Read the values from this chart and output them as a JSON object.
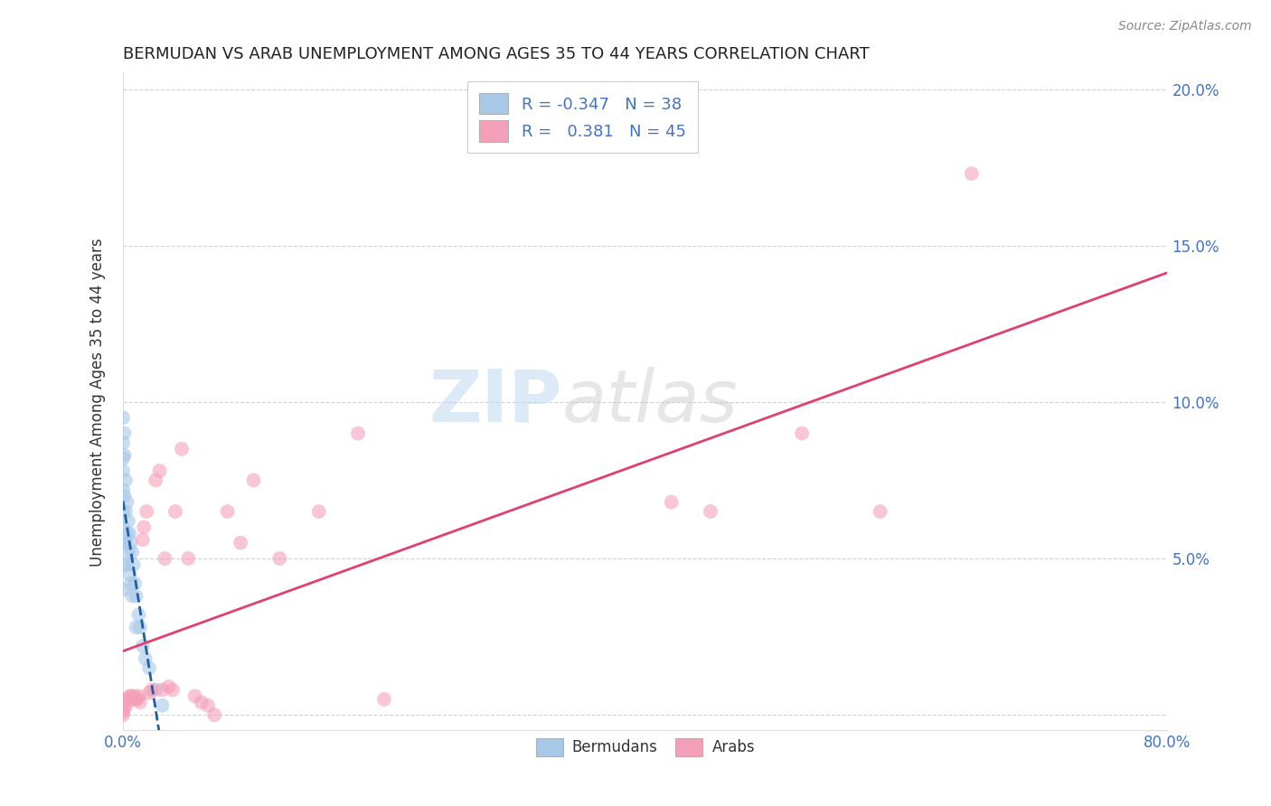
{
  "title": "BERMUDAN VS ARAB UNEMPLOYMENT AMONG AGES 35 TO 44 YEARS CORRELATION CHART",
  "source": "Source: ZipAtlas.com",
  "ylabel": "Unemployment Among Ages 35 to 44 years",
  "xlim": [
    0,
    0.8
  ],
  "ylim": [
    -0.005,
    0.205
  ],
  "watermark_zip": "ZIP",
  "watermark_atlas": "atlas",
  "legend_r_bermuda": "-0.347",
  "legend_n_bermuda": "38",
  "legend_r_arab": "0.381",
  "legend_n_arab": "45",
  "bermuda_color": "#a8c8e8",
  "arab_color": "#f4a0b8",
  "bermuda_line_color": "#2060a0",
  "arab_line_color": "#e04070",
  "background_color": "#ffffff",
  "grid_color": "#cccccc",
  "tick_color": "#4472c4",
  "berm_x": [
    0.0,
    0.0,
    0.0,
    0.0,
    0.0,
    0.0,
    0.0,
    0.0,
    0.0,
    0.0,
    0.001,
    0.001,
    0.001,
    0.002,
    0.002,
    0.002,
    0.003,
    0.003,
    0.003,
    0.004,
    0.004,
    0.005,
    0.005,
    0.006,
    0.006,
    0.007,
    0.007,
    0.008,
    0.009,
    0.01,
    0.01,
    0.012,
    0.013,
    0.015,
    0.017,
    0.02,
    0.025,
    0.03
  ],
  "berm_y": [
    0.095,
    0.087,
    0.082,
    0.078,
    0.072,
    0.065,
    0.06,
    0.055,
    0.048,
    0.04,
    0.09,
    0.083,
    0.07,
    0.075,
    0.065,
    0.055,
    0.068,
    0.058,
    0.048,
    0.062,
    0.052,
    0.058,
    0.045,
    0.055,
    0.042,
    0.052,
    0.038,
    0.048,
    0.042,
    0.038,
    0.028,
    0.032,
    0.028,
    0.022,
    0.018,
    0.015,
    0.008,
    0.003
  ],
  "arab_x": [
    0.0,
    0.0,
    0.001,
    0.002,
    0.003,
    0.004,
    0.005,
    0.006,
    0.007,
    0.008,
    0.009,
    0.01,
    0.011,
    0.012,
    0.013,
    0.015,
    0.016,
    0.018,
    0.02,
    0.022,
    0.025,
    0.028,
    0.03,
    0.032,
    0.035,
    0.038,
    0.04,
    0.045,
    0.05,
    0.055,
    0.06,
    0.065,
    0.07,
    0.08,
    0.09,
    0.1,
    0.12,
    0.15,
    0.18,
    0.2,
    0.42,
    0.45,
    0.52,
    0.58,
    0.65
  ],
  "arab_y": [
    0.0,
    0.001,
    0.002,
    0.003,
    0.005,
    0.005,
    0.006,
    0.006,
    0.005,
    0.005,
    0.006,
    0.005,
    0.005,
    0.006,
    0.004,
    0.056,
    0.06,
    0.065,
    0.007,
    0.008,
    0.075,
    0.078,
    0.008,
    0.05,
    0.009,
    0.008,
    0.065,
    0.085,
    0.05,
    0.006,
    0.004,
    0.003,
    0.0,
    0.065,
    0.055,
    0.075,
    0.05,
    0.065,
    0.09,
    0.005,
    0.068,
    0.065,
    0.09,
    0.065,
    0.173
  ]
}
